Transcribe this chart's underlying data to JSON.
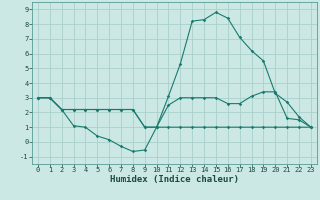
{
  "title": "",
  "xlabel": "Humidex (Indice chaleur)",
  "background_color": "#cce8e4",
  "grid_color": "#aacfcb",
  "line_color": "#1a7a6e",
  "xlim": [
    -0.5,
    23.5
  ],
  "ylim": [
    -1.5,
    9.5
  ],
  "xticks": [
    0,
    1,
    2,
    3,
    4,
    5,
    6,
    7,
    8,
    9,
    10,
    11,
    12,
    13,
    14,
    15,
    16,
    17,
    18,
    19,
    20,
    21,
    22,
    23
  ],
  "yticks": [
    -1,
    0,
    1,
    2,
    3,
    4,
    5,
    6,
    7,
    8,
    9
  ],
  "series1_x": [
    0,
    1,
    2,
    3,
    4,
    5,
    6,
    7,
    8,
    9,
    10,
    11,
    12,
    13,
    14,
    15,
    16,
    17,
    18,
    19,
    20,
    21,
    22,
    23
  ],
  "series1_y": [
    3.0,
    3.0,
    2.2,
    1.1,
    1.0,
    0.4,
    0.15,
    -0.3,
    -0.65,
    -0.55,
    1.0,
    3.1,
    5.3,
    8.2,
    8.3,
    8.8,
    8.4,
    7.1,
    6.2,
    5.5,
    3.3,
    2.7,
    1.7,
    1.0
  ],
  "series2_x": [
    0,
    1,
    2,
    3,
    4,
    5,
    6,
    7,
    8,
    9,
    10,
    11,
    12,
    13,
    14,
    15,
    16,
    17,
    18,
    19,
    20,
    21,
    22,
    23
  ],
  "series2_y": [
    3.0,
    3.0,
    2.2,
    2.2,
    2.2,
    2.2,
    2.2,
    2.2,
    2.2,
    1.0,
    1.0,
    2.5,
    3.0,
    3.0,
    3.0,
    3.0,
    2.6,
    2.6,
    3.1,
    3.4,
    3.4,
    1.6,
    1.5,
    1.0
  ],
  "series3_x": [
    0,
    1,
    2,
    3,
    4,
    5,
    6,
    7,
    8,
    9,
    10,
    11,
    12,
    13,
    14,
    15,
    16,
    17,
    18,
    19,
    20,
    21,
    22,
    23
  ],
  "series3_y": [
    3.0,
    3.0,
    2.2,
    2.2,
    2.2,
    2.2,
    2.2,
    2.2,
    2.2,
    1.0,
    1.0,
    1.0,
    1.0,
    1.0,
    1.0,
    1.0,
    1.0,
    1.0,
    1.0,
    1.0,
    1.0,
    1.0,
    1.0,
    1.0
  ],
  "tick_fontsize": 5,
  "xlabel_fontsize": 6.5,
  "marker_size": 1.8,
  "line_width": 0.8
}
